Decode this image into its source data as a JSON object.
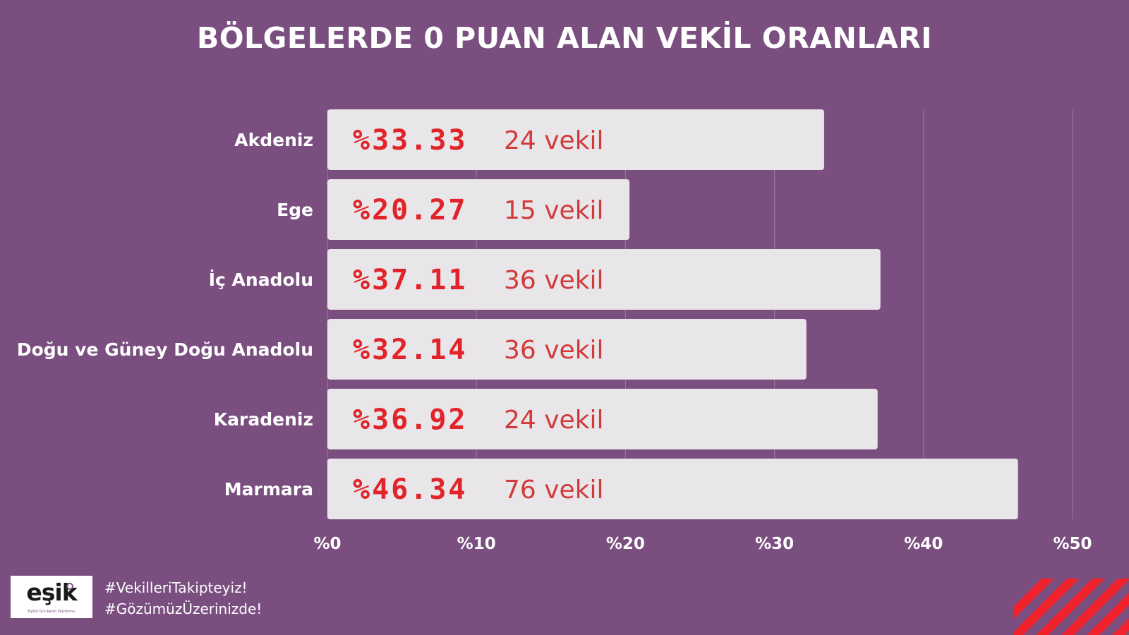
{
  "chart_data": {
    "type": "bar",
    "orientation": "horizontal",
    "title": "BÖLGELERDE 0 PUAN ALAN VEKİL ORANLARI",
    "categories": [
      "Akdeniz",
      "Ege",
      "İç Anadolu",
      "Doğu ve Güney Doğu Anadolu",
      "Karadeniz",
      "Marmara"
    ],
    "values": [
      33.33,
      20.27,
      37.11,
      32.14,
      36.92,
      46.34
    ],
    "value_labels": [
      "%33.33",
      "%20.27",
      "%37.11",
      "%32.14",
      "%36.92",
      "%46.34"
    ],
    "count_labels": [
      "24 vekil",
      "15 vekil",
      "36 vekil",
      "36 vekil",
      "24 vekil",
      "76 vekil"
    ],
    "xlim": [
      0,
      50
    ],
    "x_ticks": [
      0,
      10,
      20,
      30,
      40,
      50
    ],
    "x_tick_labels": [
      "%0",
      "%10",
      "%20",
      "%30",
      "%40",
      "%50"
    ],
    "grid": true,
    "colors": {
      "background": "#7a4f80",
      "bar": "#e8e6e8",
      "value_text": "#e0242a",
      "count_text": "#d23a3c",
      "gridline": "#9a7aa0"
    }
  },
  "footer": {
    "logo_text": "eşik",
    "logo_subtext": "Eşitlik İçin Kadın Platformu",
    "hashtags": [
      "#VekilleriTakipteyiz!",
      "#GözümüzÜzerinizde!"
    ],
    "stripe_color": "#f0222c"
  }
}
